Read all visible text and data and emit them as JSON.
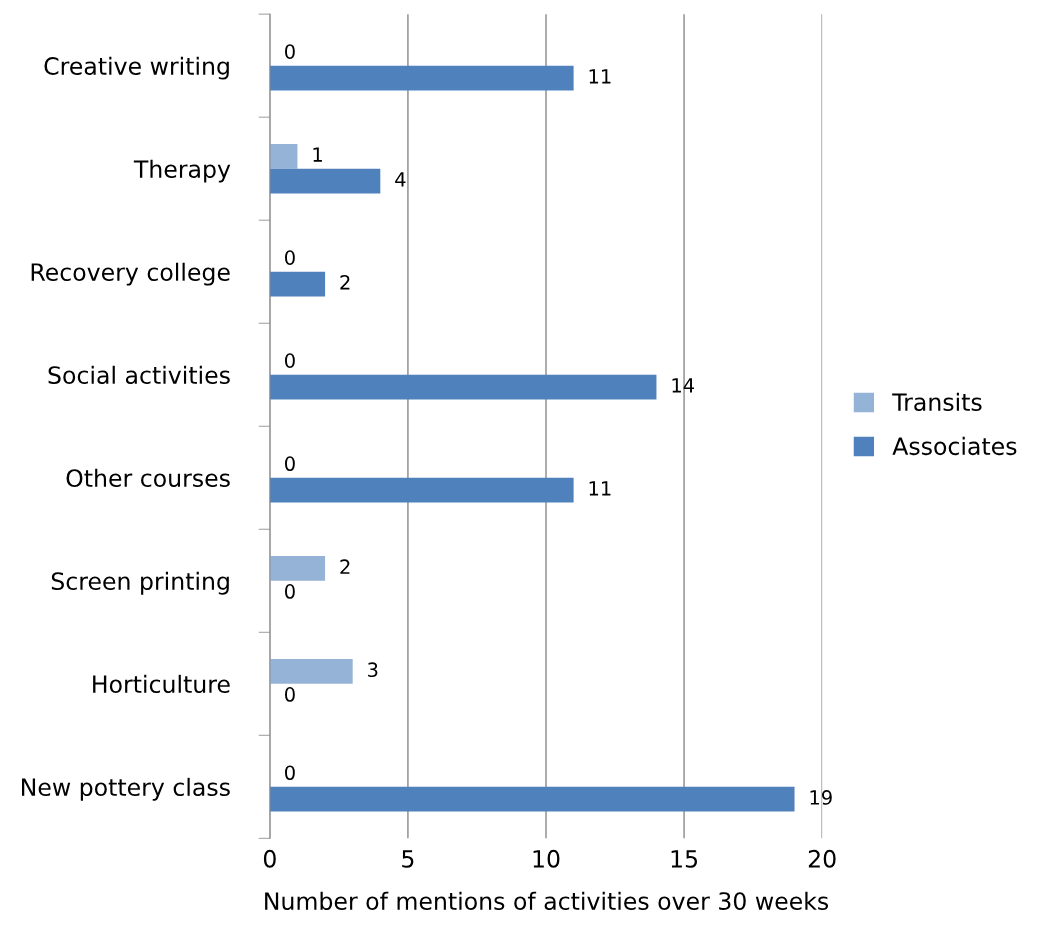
{
  "chart_data": {
    "type": "bar",
    "orientation": "horizontal",
    "xlabel": "Number of mentions of activities over 30 weeks",
    "categories": [
      "Creative writing",
      "Therapy",
      "Recovery college",
      "Social activities",
      "Other courses",
      "Screen printing",
      "Horticulture",
      "New pottery class"
    ],
    "series": [
      {
        "name": "Transits",
        "color": "#95b3d7",
        "values": [
          0,
          1,
          0,
          0,
          0,
          2,
          3,
          0
        ]
      },
      {
        "name": "Associates",
        "color": "#4f81bd",
        "values": [
          11,
          4,
          2,
          14,
          11,
          0,
          0,
          19
        ]
      }
    ],
    "xlim": [
      0,
      20
    ],
    "xticks": [
      0,
      5,
      10,
      15,
      20
    ],
    "grid": "x",
    "legend": "right",
    "data_labels": true
  }
}
